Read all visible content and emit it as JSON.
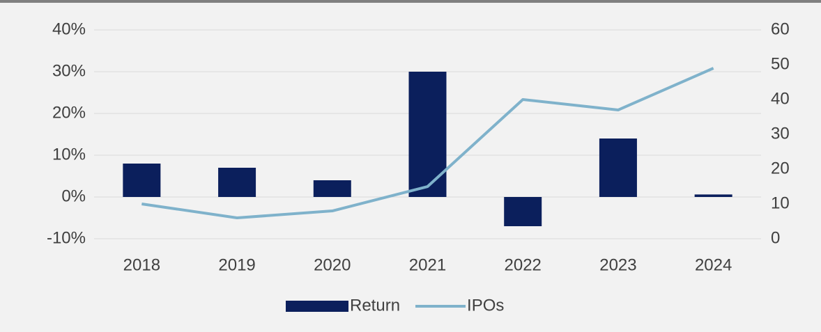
{
  "chart_data": {
    "type": "bar_line",
    "categories": [
      "2018",
      "2019",
      "2020",
      "2021",
      "2022",
      "2023",
      "2024"
    ],
    "series": [
      {
        "name": "Return",
        "type": "bar",
        "color": "#0b1f5c",
        "values": [
          8,
          7,
          4,
          30,
          -7,
          14,
          0.6
        ]
      },
      {
        "name": "IPOs",
        "type": "line",
        "axis": "y2",
        "color": "#7fb2cb",
        "values": [
          10,
          6,
          8,
          15,
          40,
          37,
          49
        ]
      }
    ],
    "ylim": [
      -10,
      40
    ],
    "yticks": [
      {
        "value": -10,
        "label": "-10%"
      },
      {
        "value": 0,
        "label": "0%"
      },
      {
        "value": 10,
        "label": "10%"
      },
      {
        "value": 20,
        "label": "20%"
      },
      {
        "value": 30,
        "label": "30%"
      },
      {
        "value": 40,
        "label": "40%"
      }
    ],
    "y2lim": [
      0,
      60
    ],
    "y2ticks": [
      0,
      10,
      20,
      30,
      40,
      50,
      60
    ],
    "grid": true,
    "legend": "bottom"
  }
}
